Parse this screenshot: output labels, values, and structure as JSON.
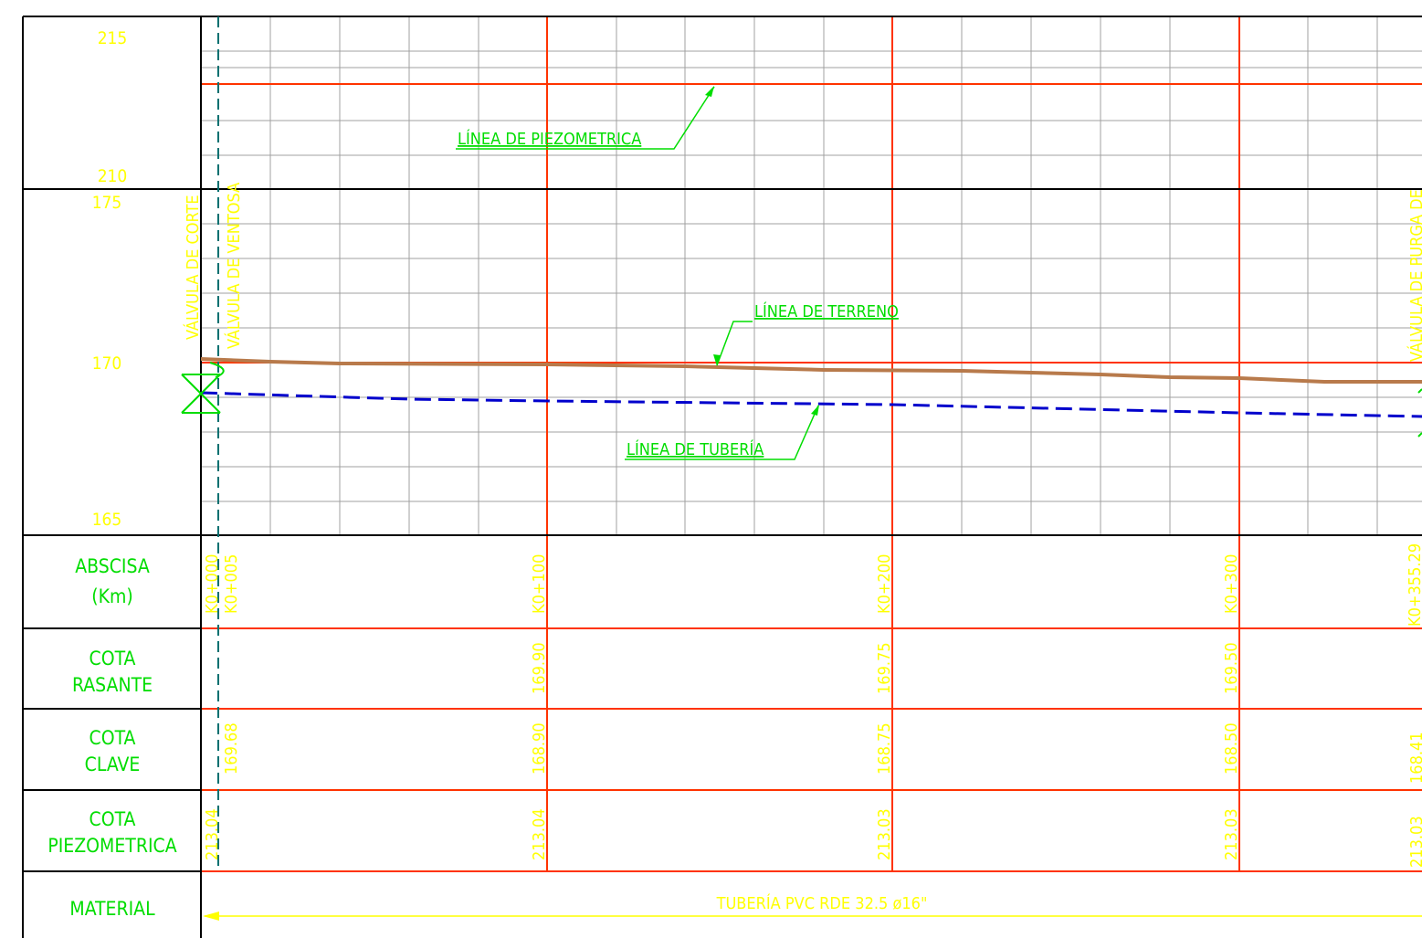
{
  "upper_scale": {
    "top": "215",
    "bottom": "210"
  },
  "lower_scale": {
    "top": "175",
    "middle": "170",
    "bottom": "165"
  },
  "labels": {
    "piezometric_line": "LÍNEA DE PIEZOMETRICA",
    "terrain_line": "LÍNEA DE TERRENO",
    "pipe_line": "LÍNEA DE TUBERÍA",
    "valve_cut": "VÁLVULA DE CORTE",
    "valve_air": "VÁLVULA DE VENTOSA",
    "valve_purge": "VÁLVULA DE PURGA DE"
  },
  "rows": {
    "abscisa": {
      "line1": "ABSCISA",
      "line2": "(Km)"
    },
    "rasante": {
      "line1": "COTA",
      "line2": "RASANTE"
    },
    "clave": {
      "line1": "COTA",
      "line2": "CLAVE"
    },
    "piezometrica": {
      "line1": "COTA",
      "line2": "PIEZOMETRICA"
    },
    "material": {
      "line1": "MATERIAL"
    }
  },
  "stations": {
    "s0": {
      "abscisa": "K0+000",
      "clave": "169.68",
      "piezo": "213.04"
    },
    "s1": {
      "abscisa": "K0+005"
    },
    "s100": {
      "abscisa": "K0+100",
      "rasante": "169.90",
      "clave": "168.90",
      "piezo": "213.04"
    },
    "s200": {
      "abscisa": "K0+200",
      "rasante": "169.75",
      "clave": "168.75",
      "piezo": "213.03"
    },
    "s300": {
      "abscisa": "K0+300",
      "rasante": "169.50",
      "clave": "168.50",
      "piezo": "213.03"
    },
    "send": {
      "abscisa": "K0+355.29",
      "clave": "168.41",
      "piezo": "213.03"
    }
  },
  "material_text": "TUBERÍA PVC RDE 32.5 ø16\"",
  "colors": {
    "background": "#ffffff",
    "frame": "#000000",
    "grid": "#a0a0a0",
    "major_grid": "#ff3300",
    "text_scale": "#ffff00",
    "text_labels": "#00ff00",
    "terrain": "#b87a4b",
    "pipe": "#0000cc",
    "axis_dash": "#007070"
  }
}
